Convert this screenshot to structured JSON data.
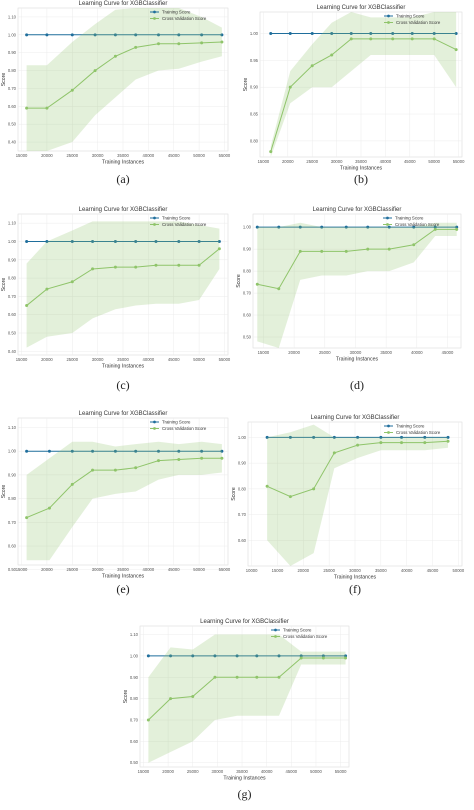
{
  "chart_data": [
    {
      "type": "line",
      "title": "Learning Curve for XGBClassifier",
      "xlabel": "Training Instances",
      "ylabel": "Score",
      "caption": "(a)",
      "x": [
        16000,
        20000,
        25000,
        29500,
        33500,
        37500,
        42000,
        46000,
        50500,
        54500
      ],
      "xticks": [
        15000,
        20000,
        25000,
        30000,
        35000,
        40000,
        45000,
        50000,
        55000
      ],
      "yticks": [
        0.4,
        0.5,
        0.6,
        0.7,
        0.8,
        0.9,
        1.0,
        1.1
      ],
      "ylim": [
        0.35,
        1.15
      ],
      "series": [
        {
          "name": "Training Score",
          "color": "#1f6e9c",
          "values": [
            1.0,
            1.0,
            1.0,
            1.0,
            1.0,
            1.0,
            1.0,
            1.0,
            1.0,
            1.0
          ]
        },
        {
          "name": "Cross Validation Score",
          "color": "#8fc46a",
          "values": [
            0.59,
            0.59,
            0.69,
            0.8,
            0.88,
            0.93,
            0.95,
            0.95,
            0.955,
            0.96
          ],
          "band_lower": [
            0.35,
            0.35,
            0.4,
            0.55,
            0.65,
            0.75,
            0.8,
            0.81,
            0.85,
            0.88
          ],
          "band_upper": [
            0.83,
            0.83,
            0.96,
            1.06,
            1.14,
            1.15,
            1.15,
            1.15,
            1.1,
            1.04
          ]
        }
      ],
      "grid": true,
      "legend": "top-right"
    },
    {
      "type": "line",
      "title": "Learning Curve for XGBClassifier",
      "xlabel": "Training Instances",
      "ylabel": "Score",
      "caption": "(b)",
      "x": [
        16500,
        20500,
        25000,
        29000,
        33000,
        37000,
        41500,
        45500,
        50000,
        54500
      ],
      "xticks": [
        15000,
        20000,
        25000,
        30000,
        35000,
        40000,
        45000,
        50000,
        55000
      ],
      "yticks": [
        0.8,
        0.85,
        0.9,
        0.95,
        1.0
      ],
      "ylim": [
        0.77,
        1.04
      ],
      "series": [
        {
          "name": "Training Score",
          "color": "#1f6e9c",
          "values": [
            1.0,
            1.0,
            1.0,
            1.0,
            1.0,
            1.0,
            1.0,
            1.0,
            1.0,
            1.0
          ]
        },
        {
          "name": "Cross Validation Score",
          "color": "#8fc46a",
          "values": [
            0.78,
            0.9,
            0.94,
            0.96,
            0.99,
            0.99,
            0.99,
            0.99,
            0.99,
            0.97
          ],
          "band_lower": [
            0.77,
            0.87,
            0.9,
            0.9,
            0.93,
            0.96,
            0.96,
            0.96,
            0.96,
            0.9
          ],
          "band_upper": [
            0.79,
            0.93,
            0.98,
            1.02,
            1.04,
            1.03,
            1.03,
            1.03,
            1.04,
            1.04
          ]
        }
      ],
      "grid": true,
      "legend": "top-right"
    },
    {
      "type": "line",
      "title": "Learning Curve for XGBClassifier",
      "xlabel": "Training Instances",
      "ylabel": "Score",
      "caption": "(c)",
      "x": [
        16000,
        20000,
        25000,
        29000,
        33500,
        37500,
        41500,
        46000,
        50000,
        54000
      ],
      "xticks": [
        15000,
        20000,
        25000,
        30000,
        35000,
        40000,
        45000,
        50000,
        55000
      ],
      "yticks": [
        0.4,
        0.5,
        0.6,
        0.7,
        0.8,
        0.9,
        1.0,
        1.1
      ],
      "ylim": [
        0.38,
        1.15
      ],
      "series": [
        {
          "name": "Training Score",
          "color": "#1f6e9c",
          "values": [
            1.0,
            1.0,
            1.0,
            1.0,
            1.0,
            1.0,
            1.0,
            1.0,
            1.0,
            1.0
          ]
        },
        {
          "name": "Cross Validation Score",
          "color": "#8fc46a",
          "values": [
            0.65,
            0.74,
            0.78,
            0.85,
            0.86,
            0.86,
            0.87,
            0.87,
            0.87,
            0.96
          ],
          "band_lower": [
            0.42,
            0.48,
            0.5,
            0.58,
            0.63,
            0.65,
            0.66,
            0.66,
            0.68,
            0.85
          ],
          "band_upper": [
            0.88,
            1.0,
            1.06,
            1.11,
            1.11,
            1.11,
            1.11,
            1.11,
            1.09,
            1.07
          ]
        }
      ],
      "grid": true,
      "legend": "top-right"
    },
    {
      "type": "line",
      "title": "Learning Curve for XGBClassifier",
      "xlabel": "Training Instances",
      "ylabel": "Score",
      "caption": "(d)",
      "x": [
        14000,
        17500,
        21000,
        24500,
        28500,
        32000,
        35500,
        39500,
        43000,
        46500
      ],
      "xticks": [
        15000,
        20000,
        25000,
        30000,
        35000,
        40000,
        45000
      ],
      "yticks": [
        0.5,
        0.6,
        0.7,
        0.8,
        0.9,
        1.0
      ],
      "ylim": [
        0.45,
        1.06
      ],
      "series": [
        {
          "name": "Training Score",
          "color": "#1f6e9c",
          "values": [
            1.0,
            1.0,
            1.0,
            1.0,
            1.0,
            1.0,
            1.0,
            1.0,
            1.0,
            1.0
          ]
        },
        {
          "name": "Cross Validation Score",
          "color": "#8fc46a",
          "values": [
            0.74,
            0.72,
            0.89,
            0.89,
            0.89,
            0.9,
            0.9,
            0.92,
            0.99,
            0.99
          ],
          "band_lower": [
            0.48,
            0.45,
            0.76,
            0.78,
            0.78,
            0.8,
            0.8,
            0.84,
            0.96,
            0.96
          ],
          "band_upper": [
            1.0,
            1.0,
            1.02,
            1.0,
            1.0,
            1.0,
            1.0,
            1.0,
            1.02,
            1.02
          ]
        }
      ],
      "grid": true,
      "legend": "top-right"
    },
    {
      "type": "line",
      "title": "Learning Curve for XGBClassifier",
      "xlabel": "Training Instances",
      "ylabel": "Score",
      "caption": "(e)",
      "x": [
        16000,
        20500,
        25000,
        29000,
        33500,
        37500,
        42000,
        46000,
        50500,
        54500
      ],
      "xticks": [
        15000,
        20000,
        25000,
        30000,
        35000,
        40000,
        45000,
        50000,
        55000
      ],
      "yticks": [
        0.5,
        0.6,
        0.7,
        0.8,
        0.9,
        1.0,
        1.1
      ],
      "ylim": [
        0.52,
        1.14
      ],
      "series": [
        {
          "name": "Training Score",
          "color": "#1f6e9c",
          "values": [
            1.0,
            1.0,
            1.0,
            1.0,
            1.0,
            1.0,
            1.0,
            1.0,
            1.0,
            1.0
          ]
        },
        {
          "name": "Cross Validation Score",
          "color": "#8fc46a",
          "values": [
            0.72,
            0.76,
            0.86,
            0.92,
            0.92,
            0.93,
            0.96,
            0.965,
            0.97,
            0.97
          ],
          "band_lower": [
            0.54,
            0.54,
            0.68,
            0.8,
            0.82,
            0.83,
            0.88,
            0.9,
            0.9,
            0.91
          ],
          "band_upper": [
            0.9,
            0.97,
            1.04,
            1.04,
            1.02,
            1.03,
            1.04,
            1.03,
            1.04,
            1.03
          ]
        }
      ],
      "grid": true,
      "legend": "top-right"
    },
    {
      "type": "line",
      "title": "Learning Curve for XGBClassifier",
      "xlabel": "Training Instances",
      "ylabel": "Score",
      "caption": "(f)",
      "x": [
        13000,
        17500,
        22000,
        26000,
        30500,
        35000,
        39000,
        43500,
        48000
      ],
      "xticks": [
        10000,
        15000,
        20000,
        25000,
        30000,
        35000,
        40000,
        45000,
        50000
      ],
      "yticks": [
        0.6,
        0.7,
        0.8,
        0.9,
        1.0
      ],
      "ylim": [
        0.5,
        1.06
      ],
      "series": [
        {
          "name": "Training Score",
          "color": "#1f6e9c",
          "values": [
            1.0,
            1.0,
            1.0,
            1.0,
            1.0,
            1.0,
            1.0,
            1.0,
            1.0
          ]
        },
        {
          "name": "Cross Validation Score",
          "color": "#8fc46a",
          "values": [
            0.81,
            0.77,
            0.8,
            0.94,
            0.97,
            0.98,
            0.98,
            0.98,
            0.985
          ],
          "band_lower": [
            0.6,
            0.5,
            0.55,
            0.88,
            0.92,
            0.95,
            0.95,
            0.95,
            0.96
          ],
          "band_upper": [
            1.0,
            1.02,
            1.05,
            1.0,
            1.0,
            1.0,
            1.0,
            1.0,
            1.0
          ]
        }
      ],
      "grid": true,
      "legend": "top-right"
    },
    {
      "type": "line",
      "title": "Learning Curve for XGBClassifier",
      "xlabel": "Training Instances",
      "ylabel": "Score",
      "caption": "(g)",
      "x": [
        16000,
        20500,
        25000,
        29500,
        34000,
        38000,
        42500,
        47000,
        51500,
        56000
      ],
      "xticks": [
        15000,
        20000,
        25000,
        30000,
        35000,
        40000,
        45000,
        50000,
        55000
      ],
      "yticks": [
        0.5,
        0.6,
        0.7,
        0.8,
        0.9,
        1.0,
        1.1
      ],
      "ylim": [
        0.48,
        1.14
      ],
      "series": [
        {
          "name": "Training Score",
          "color": "#1f6e9c",
          "values": [
            1.0,
            1.0,
            1.0,
            1.0,
            1.0,
            1.0,
            1.0,
            1.0,
            1.0,
            1.0
          ]
        },
        {
          "name": "Cross Validation Score",
          "color": "#8fc46a",
          "values": [
            0.7,
            0.8,
            0.81,
            0.9,
            0.9,
            0.9,
            0.9,
            0.99,
            0.99,
            0.99
          ],
          "band_lower": [
            0.5,
            0.55,
            0.6,
            0.7,
            0.72,
            0.72,
            0.72,
            0.96,
            0.96,
            0.96
          ],
          "band_upper": [
            0.9,
            1.04,
            1.03,
            1.1,
            1.1,
            1.1,
            1.1,
            1.02,
            1.02,
            1.02
          ]
        }
      ],
      "grid": true,
      "legend": "top-right"
    }
  ]
}
